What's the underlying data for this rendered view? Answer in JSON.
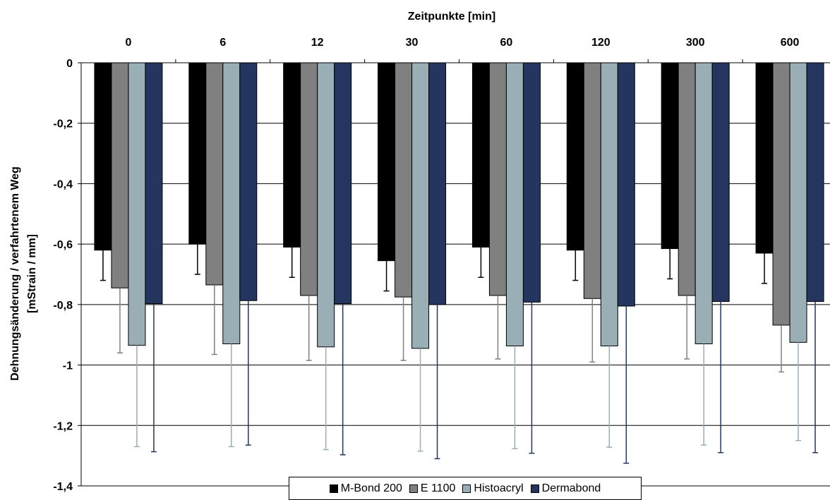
{
  "chart_data": {
    "type": "bar",
    "title": "",
    "xlabel": "Zeitpunkte [min]",
    "ylabel_line1": "Dehnungsänderung / verfahrtenem Weg",
    "ylabel_line2": "[mStrain / mm]",
    "categories": [
      "0",
      "6",
      "12",
      "30",
      "60",
      "120",
      "300",
      "600"
    ],
    "x_axis_position": "top",
    "ylim": [
      -1.4,
      0
    ],
    "yticks": [
      "0",
      "-0,2",
      "-0,4",
      "-0,6",
      "-0,8",
      "-1",
      "-1,2",
      "-1,4"
    ],
    "ytick_values": [
      0,
      -0.2,
      -0.4,
      -0.6,
      -0.8,
      -1.0,
      -1.2,
      -1.4
    ],
    "grid": true,
    "legend_position": "bottom-center",
    "series": [
      {
        "name": "M-Bond 200",
        "color": "#000000",
        "errcolor": "#000000",
        "values": [
          -0.62,
          -0.6,
          -0.61,
          -0.655,
          -0.61,
          -0.62,
          -0.615,
          -0.63
        ],
        "errors": [
          0.1,
          0.1,
          0.1,
          0.1,
          0.1,
          0.1,
          0.1,
          0.1
        ]
      },
      {
        "name": "E 1100",
        "color": "#808080",
        "errcolor": "#808080",
        "values": [
          -0.745,
          -0.735,
          -0.77,
          -0.775,
          -0.77,
          -0.78,
          -0.77,
          -0.868
        ],
        "errors": [
          0.215,
          0.23,
          0.215,
          0.21,
          0.21,
          0.21,
          0.21,
          0.155
        ]
      },
      {
        "name": "Histoacryl",
        "color": "#9aaeb6",
        "errcolor": "#9aaeb6",
        "values": [
          -0.935,
          -0.93,
          -0.94,
          -0.945,
          -0.937,
          -0.937,
          -0.93,
          -0.925
        ],
        "errors": [
          0.335,
          0.34,
          0.34,
          0.34,
          0.34,
          0.335,
          0.335,
          0.325
        ]
      },
      {
        "name": "Dermabond",
        "color": "#243660",
        "errcolor": "#243660",
        "values": [
          -0.797,
          -0.787,
          -0.797,
          -0.8,
          -0.792,
          -0.805,
          -0.79,
          -0.79
        ],
        "errors": [
          0.49,
          0.478,
          0.5,
          0.51,
          0.5,
          0.52,
          0.5,
          0.5
        ]
      }
    ]
  }
}
